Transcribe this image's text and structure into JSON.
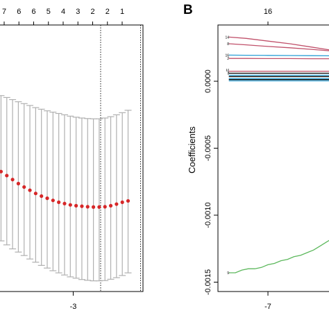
{
  "chart_data": [
    {
      "panel": "",
      "type": "scatter",
      "description_role": "cross-validation error vs log(lambda)",
      "top_axis_labels": [
        "7",
        "6",
        "6",
        "5",
        "4",
        "3",
        "2",
        "2",
        "1"
      ],
      "x_tick_labels": [
        "-3"
      ],
      "x_ticks": [
        -3
      ],
      "xlim": [
        -4.55,
        -1.55
      ],
      "ylim": [
        0,
        1
      ],
      "x": [
        -4.5,
        -4.38,
        -4.26,
        -4.14,
        -4.02,
        -3.9,
        -3.78,
        -3.66,
        -3.54,
        -3.42,
        -3.3,
        -3.18,
        -3.06,
        -2.94,
        -2.82,
        -2.7,
        -2.58,
        -2.46,
        -2.34,
        -2.22,
        -2.1,
        -1.98,
        -1.86
      ],
      "y": [
        0.45,
        0.435,
        0.42,
        0.405,
        0.392,
        0.38,
        0.368,
        0.358,
        0.35,
        0.342,
        0.335,
        0.33,
        0.325,
        0.322,
        0.32,
        0.318,
        0.317,
        0.317,
        0.318,
        0.322,
        0.328,
        0.335,
        0.34
      ],
      "y_upper": [
        0.735,
        0.728,
        0.72,
        0.712,
        0.705,
        0.698,
        0.69,
        0.684,
        0.678,
        0.673,
        0.668,
        0.663,
        0.658,
        0.654,
        0.651,
        0.649,
        0.648,
        0.648,
        0.651,
        0.656,
        0.663,
        0.671,
        0.68
      ],
      "y_lower": [
        0.19,
        0.175,
        0.16,
        0.148,
        0.135,
        0.122,
        0.11,
        0.098,
        0.088,
        0.078,
        0.07,
        0.062,
        0.055,
        0.05,
        0.045,
        0.042,
        0.04,
        0.04,
        0.041,
        0.046,
        0.052,
        0.06,
        0.07
      ],
      "vlines": [
        -2.43,
        -1.6
      ],
      "point_color": "#d62728",
      "bar_color": "#b0b0b0"
    },
    {
      "panel": "B",
      "type": "line",
      "description_role": "coefficient paths vs log(lambda)",
      "ylabel": "Coefficients",
      "top_axis_labels": [
        "16"
      ],
      "top_axis_values": [
        -7
      ],
      "x_tick_labels": [
        "-7"
      ],
      "x_ticks": [
        -7
      ],
      "y_tick_labels": [
        "0.0000",
        "-0.0005",
        "-0.0010",
        "-0.0015"
      ],
      "y_ticks": [
        0,
        -0.0005,
        -0.001,
        -0.0015
      ],
      "xlim": [
        -8.15,
        -5.5
      ],
      "ylim": [
        -0.00157,
        0.00042
      ],
      "series": [
        {
          "label": "14",
          "color": "#c0506a",
          "x": [
            -7.9,
            -7.5,
            -7.0,
            -6.5,
            -6.0,
            -5.5
          ],
          "y": [
            0.00033,
            0.00032,
            0.0003,
            0.00028,
            0.000255,
            0.00023
          ]
        },
        {
          "label": "8",
          "color": "#c0506a",
          "x": [
            -7.9,
            -7.5,
            -7.0,
            -6.5,
            -6.0,
            -5.5
          ],
          "y": [
            0.00028,
            0.000272,
            0.00026,
            0.00025,
            0.000238,
            0.000225
          ]
        },
        {
          "label": "16",
          "color": "#2a9fd6",
          "x": [
            -7.9,
            -7.5,
            -7.0,
            -6.5,
            -6.0,
            -5.5
          ],
          "y": [
            0.000195,
            0.000194,
            0.000193,
            0.000192,
            0.000191,
            0.00019
          ]
        },
        {
          "label": "2",
          "color": "#c0506a",
          "x": [
            -7.9,
            -7.5,
            -7.0,
            -6.5,
            -6.0,
            -5.5
          ],
          "y": [
            0.00017,
            0.00017,
            0.000169,
            0.000169,
            0.000168,
            0.000168
          ]
        },
        {
          "label": "",
          "color": "#c0506a",
          "x": [
            -7.9,
            -5.5
          ],
          "y": [
            7.5e-05,
            7.5e-05
          ]
        },
        {
          "label": "",
          "color": "#000000",
          "x": [
            -7.9,
            -5.5
          ],
          "y": [
            6e-05,
            6e-05
          ]
        },
        {
          "label": "",
          "color": "#2a9fd6",
          "x": [
            -7.9,
            -5.5
          ],
          "y": [
            4.5e-05,
            4.5e-05
          ]
        },
        {
          "label": "",
          "color": "#000000",
          "x": [
            -7.9,
            -5.5
          ],
          "y": [
            3.5e-05,
            3.5e-05
          ]
        },
        {
          "label": "",
          "color": "#2a9fd6",
          "x": [
            -7.9,
            -5.5
          ],
          "y": [
            2e-05,
            2e-05
          ]
        },
        {
          "label": "",
          "color": "#000000",
          "x": [
            -7.9,
            -5.5
          ],
          "y": [
            1.2e-05,
            1.2e-05
          ]
        },
        {
          "label": "",
          "color": "#2a9fd6",
          "x": [
            -7.9,
            -5.5
          ],
          "y": [
            3e-06,
            3e-06
          ]
        },
        {
          "label": "9",
          "color": "#5cb85c",
          "x": [
            -7.9,
            -7.75,
            -7.6,
            -7.45,
            -7.3,
            -7.15,
            -7.0,
            -6.85,
            -6.7,
            -6.55,
            -6.4,
            -6.25,
            -6.1,
            -5.95,
            -5.8,
            -5.65,
            -5.5
          ],
          "y": [
            -0.00143,
            -0.00143,
            -0.00141,
            -0.0014,
            -0.0014,
            -0.00139,
            -0.00137,
            -0.00136,
            -0.00134,
            -0.00133,
            -0.00131,
            -0.0013,
            -0.00128,
            -0.00126,
            -0.00123,
            -0.0012,
            -0.00117
          ]
        }
      ],
      "stacked_labels_near_zero": [
        "17",
        "12",
        "5",
        "4",
        "1"
      ]
    }
  ]
}
